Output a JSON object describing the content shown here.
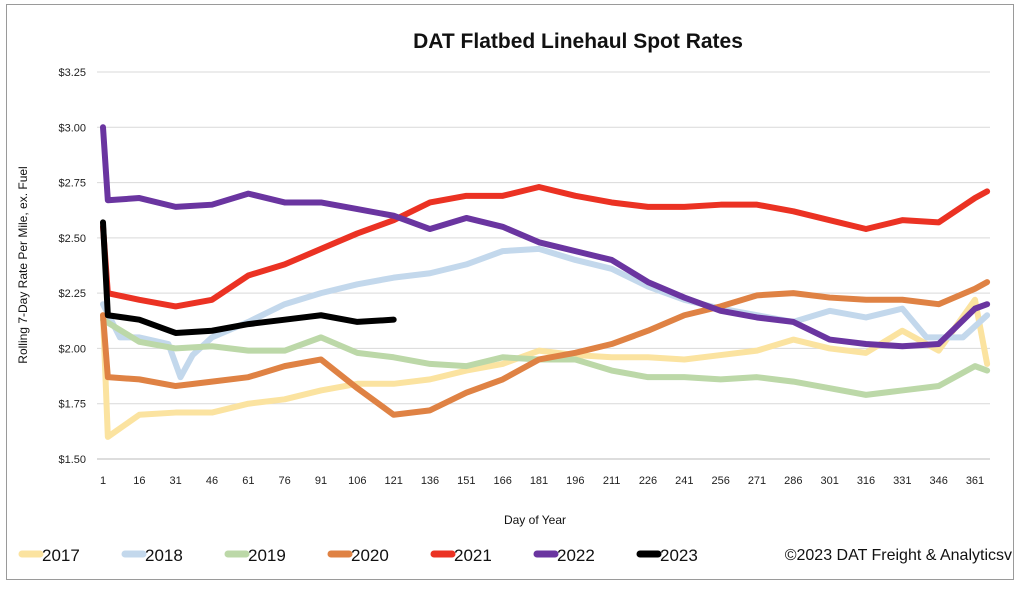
{
  "chart_data": {
    "type": "line",
    "title": "DAT Flatbed Linehaul Spot Rates",
    "xlabel": "Day of Year",
    "ylabel": "Rolling 7-Day Rate Per Mile, ex. Fuel",
    "xlim": [
      1,
      366
    ],
    "ylim": [
      1.5,
      3.25
    ],
    "x_ticks": [
      "1",
      "16",
      "31",
      "46",
      "61",
      "76",
      "91",
      "106",
      "121",
      "136",
      "151",
      "166",
      "181",
      "196",
      "211",
      "226",
      "241",
      "256",
      "271",
      "286",
      "301",
      "316",
      "331",
      "346",
      "361"
    ],
    "y_ticks": [
      "$1.50",
      "$1.75",
      "$2.00",
      "$2.25",
      "$2.50",
      "$2.75",
      "$3.00",
      "$3.25"
    ],
    "grid": true,
    "legend_placement": "bottom",
    "footnote": "©2023 DAT Freight & Analyticsv",
    "series": [
      {
        "name": "2017",
        "color": "#fbe3a0",
        "x": [
          1,
          3,
          16,
          31,
          46,
          61,
          76,
          91,
          106,
          121,
          136,
          151,
          166,
          181,
          196,
          211,
          226,
          241,
          256,
          271,
          286,
          301,
          316,
          331,
          346,
          361,
          366
        ],
        "y": [
          2.15,
          1.6,
          1.7,
          1.71,
          1.71,
          1.75,
          1.77,
          1.81,
          1.84,
          1.84,
          1.86,
          1.9,
          1.93,
          1.99,
          1.97,
          1.96,
          1.96,
          1.95,
          1.97,
          1.99,
          2.04,
          2.0,
          1.98,
          2.08,
          1.99,
          2.22,
          1.93
        ]
      },
      {
        "name": "2018",
        "color": "#c3d8ec",
        "x": [
          1,
          8,
          16,
          28,
          33,
          38,
          46,
          61,
          76,
          91,
          106,
          121,
          136,
          151,
          166,
          181,
          196,
          211,
          226,
          241,
          256,
          271,
          286,
          301,
          316,
          331,
          341,
          356,
          366
        ],
        "y": [
          2.2,
          2.05,
          2.05,
          2.02,
          1.87,
          1.97,
          2.05,
          2.12,
          2.2,
          2.25,
          2.29,
          2.32,
          2.34,
          2.38,
          2.44,
          2.45,
          2.4,
          2.36,
          2.28,
          2.22,
          2.18,
          2.15,
          2.12,
          2.17,
          2.14,
          2.18,
          2.05,
          2.05,
          2.15
        ]
      },
      {
        "name": "2019",
        "color": "#bcd8a8",
        "x": [
          1,
          16,
          31,
          46,
          61,
          76,
          91,
          106,
          121,
          136,
          151,
          166,
          181,
          196,
          211,
          226,
          241,
          256,
          271,
          286,
          301,
          316,
          331,
          346,
          361,
          366
        ],
        "y": [
          2.13,
          2.03,
          2.0,
          2.01,
          1.99,
          1.99,
          2.05,
          1.98,
          1.96,
          1.93,
          1.92,
          1.96,
          1.95,
          1.95,
          1.9,
          1.87,
          1.87,
          1.86,
          1.87,
          1.85,
          1.82,
          1.79,
          1.81,
          1.83,
          1.92,
          1.9
        ]
      },
      {
        "name": "2020",
        "color": "#df8244",
        "x": [
          1,
          3,
          16,
          31,
          46,
          61,
          76,
          91,
          106,
          121,
          136,
          151,
          166,
          181,
          196,
          211,
          226,
          241,
          256,
          271,
          286,
          301,
          316,
          331,
          346,
          361,
          366
        ],
        "y": [
          2.15,
          1.87,
          1.86,
          1.83,
          1.85,
          1.87,
          1.92,
          1.95,
          1.82,
          1.7,
          1.72,
          1.8,
          1.86,
          1.95,
          1.98,
          2.02,
          2.08,
          2.15,
          2.19,
          2.24,
          2.25,
          2.23,
          2.22,
          2.22,
          2.2,
          2.27,
          2.3
        ]
      },
      {
        "name": "2021",
        "color": "#eb3223",
        "x": [
          1,
          3,
          16,
          31,
          46,
          61,
          76,
          91,
          106,
          121,
          136,
          151,
          166,
          181,
          196,
          211,
          226,
          241,
          256,
          271,
          286,
          301,
          316,
          331,
          346,
          361,
          366
        ],
        "y": [
          2.55,
          2.25,
          2.22,
          2.19,
          2.22,
          2.33,
          2.38,
          2.45,
          2.52,
          2.58,
          2.66,
          2.69,
          2.69,
          2.73,
          2.69,
          2.66,
          2.64,
          2.64,
          2.65,
          2.65,
          2.62,
          2.58,
          2.54,
          2.58,
          2.57,
          2.68,
          2.71
        ]
      },
      {
        "name": "2022",
        "color": "#6a35a0",
        "x": [
          1,
          3,
          16,
          31,
          46,
          61,
          76,
          91,
          106,
          121,
          136,
          151,
          166,
          181,
          196,
          211,
          226,
          241,
          256,
          271,
          286,
          301,
          316,
          331,
          346,
          361,
          366
        ],
        "y": [
          3.0,
          2.67,
          2.68,
          2.64,
          2.65,
          2.7,
          2.66,
          2.66,
          2.63,
          2.6,
          2.54,
          2.59,
          2.55,
          2.48,
          2.44,
          2.4,
          2.3,
          2.23,
          2.17,
          2.14,
          2.12,
          2.04,
          2.02,
          2.01,
          2.02,
          2.18,
          2.2
        ]
      },
      {
        "name": "2023",
        "color": "#000000",
        "x": [
          1,
          3,
          16,
          31,
          46,
          61,
          76,
          91,
          106,
          121
        ],
        "y": [
          2.57,
          2.15,
          2.13,
          2.07,
          2.08,
          2.11,
          2.13,
          2.15,
          2.12,
          2.13
        ]
      }
    ]
  }
}
